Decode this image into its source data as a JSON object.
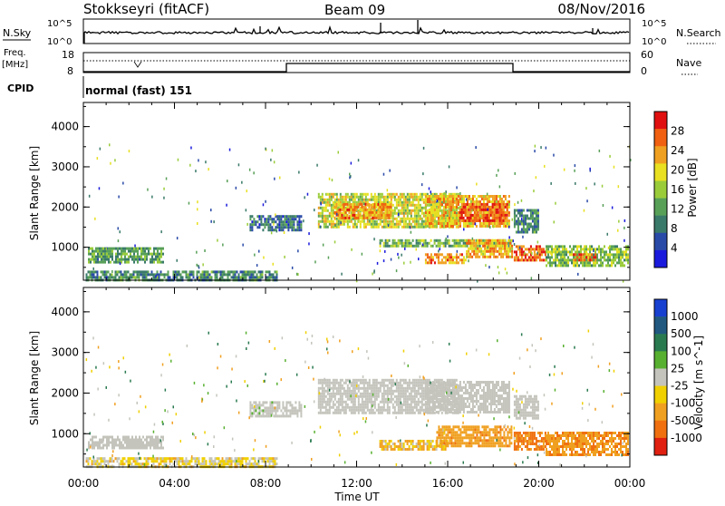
{
  "header": {
    "station": "Stokkseyri (fitACF)",
    "beam": "Beam 09",
    "date": "08/Nov/2016"
  },
  "summary_panels": {
    "nsky_label": "N.Sky",
    "nsearch_label": "N.Search",
    "nsky_ticks_left": [
      "10^5",
      "10^0"
    ],
    "nsky_ticks_right": [
      "10^5",
      "10^0"
    ],
    "freq_label_line1": "Freq.",
    "freq_label_line2": "[MHz]",
    "freq_ticks": [
      "18",
      "8"
    ],
    "nave_label": "Nave",
    "nave_ticks": [
      "60",
      "0"
    ],
    "cpid_label": "CPID",
    "cpid_text": "normal (fast) 151"
  },
  "colors": {
    "power": [
      "#1a1adc",
      "#2a4aa8",
      "#3a7a6a",
      "#58a058",
      "#9acc3a",
      "#e8e020",
      "#f0a020",
      "#f06010",
      "#e01010"
    ],
    "velocity": [
      "#1840d0",
      "#205880",
      "#2a7a50",
      "#58b030",
      "#c4c4bc",
      "#f0d000",
      "#f0a020",
      "#f07010",
      "#e02010"
    ]
  },
  "chart_data": [
    {
      "type": "heatmap",
      "name": "power",
      "xlabel": "",
      "ylabel": "Slant Range [km]",
      "x_range_hours": [
        0,
        24
      ],
      "ylim": [
        180,
        4600
      ],
      "y_ticks": [
        "1000",
        "2000",
        "3000",
        "4000"
      ],
      "colorbar_label": "Power [dB]",
      "colorbar_ticks": [
        "4",
        "8",
        "12",
        "16",
        "20",
        "24",
        "28"
      ],
      "colorbar_range": [
        0,
        32
      ],
      "regions": [
        {
          "t0": 0.2,
          "t1": 3.5,
          "r0": 650,
          "r1": 1000,
          "value": 12
        },
        {
          "t0": 0.1,
          "t1": 8.5,
          "r0": 200,
          "r1": 420,
          "value": 10
        },
        {
          "t0": 7.3,
          "t1": 9.6,
          "r0": 1450,
          "r1": 1800,
          "value": 8
        },
        {
          "t0": 10.3,
          "t1": 16.5,
          "r0": 1500,
          "r1": 2350,
          "value": 18
        },
        {
          "t0": 11.0,
          "t1": 13.5,
          "r0": 1750,
          "r1": 2100,
          "value": 24
        },
        {
          "t0": 15.0,
          "t1": 18.7,
          "r0": 1550,
          "r1": 2300,
          "value": 22
        },
        {
          "t0": 16.5,
          "t1": 18.6,
          "r0": 1650,
          "r1": 2100,
          "value": 27
        },
        {
          "t0": 13.0,
          "t1": 18.8,
          "r0": 1000,
          "r1": 1200,
          "value": 14
        },
        {
          "t0": 15.0,
          "t1": 16.8,
          "r0": 600,
          "r1": 850,
          "value": 24
        },
        {
          "t0": 16.8,
          "t1": 18.8,
          "r0": 750,
          "r1": 1200,
          "value": 22
        },
        {
          "t0": 18.9,
          "t1": 20.3,
          "r0": 680,
          "r1": 1050,
          "value": 27
        },
        {
          "t0": 20.3,
          "t1": 23.9,
          "r0": 550,
          "r1": 1050,
          "value": 15
        },
        {
          "t0": 18.9,
          "t1": 20.0,
          "r0": 1350,
          "r1": 1950,
          "value": 10
        },
        {
          "t0": 21.5,
          "t1": 22.5,
          "r0": 700,
          "r1": 850,
          "value": 27
        }
      ]
    },
    {
      "type": "heatmap",
      "name": "velocity",
      "xlabel": "Time UT",
      "ylabel": "Slant Range [km]",
      "x_range_hours": [
        0,
        24
      ],
      "ylim": [
        180,
        4600
      ],
      "x_ticks": [
        "00:00",
        "04:00",
        "08:00",
        "12:00",
        "16:00",
        "20:00",
        "00:00"
      ],
      "y_ticks": [
        "1000",
        "2000",
        "3000",
        "4000"
      ],
      "colorbar_label": "Velocity [m s^-1]",
      "colorbar_ticks": [
        "1000",
        "500",
        "100",
        "25",
        "-25",
        "-100",
        "-500",
        "-1000"
      ],
      "regions": [
        {
          "t0": 0.2,
          "t1": 3.5,
          "r0": 650,
          "r1": 950,
          "value": 0
        },
        {
          "t0": 0.1,
          "t1": 8.5,
          "r0": 200,
          "r1": 420,
          "value": -30
        },
        {
          "t0": 7.3,
          "t1": 9.6,
          "r0": 1450,
          "r1": 1800,
          "value": 5
        },
        {
          "t0": 10.3,
          "t1": 16.5,
          "r0": 1500,
          "r1": 2350,
          "value": 0
        },
        {
          "t0": 15.0,
          "t1": 18.7,
          "r0": 1550,
          "r1": 2300,
          "value": 0
        },
        {
          "t0": 13.0,
          "t1": 16.0,
          "r0": 600,
          "r1": 850,
          "value": -60
        },
        {
          "t0": 15.5,
          "t1": 18.8,
          "r0": 700,
          "r1": 1200,
          "value": -200
        },
        {
          "t0": 18.9,
          "t1": 20.3,
          "r0": 600,
          "r1": 1050,
          "value": -400
        },
        {
          "t0": 20.3,
          "t1": 23.9,
          "r0": 500,
          "r1": 1050,
          "value": -250
        },
        {
          "t0": 18.9,
          "t1": 20.0,
          "r0": 1350,
          "r1": 1950,
          "value": 0
        }
      ]
    }
  ]
}
